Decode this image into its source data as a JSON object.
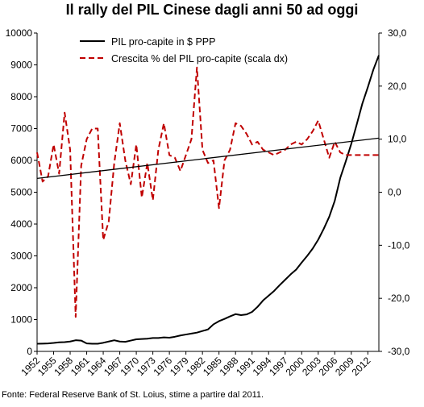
{
  "title": "Il rally del PIL Cinese dagli anni 50 ad oggi",
  "source": "Fonte: Federal Reserve Bank of St. Loius, stime a partire dal 2011.",
  "chart_data": {
    "type": "line",
    "title": "Il rally del PIL Cinese dagli anni 50 ad oggi",
    "x_tick_labels": [
      "1952",
      "1955",
      "1958",
      "1961",
      "1964",
      "1967",
      "1970",
      "1973",
      "1976",
      "1979",
      "1982",
      "1985",
      "1988",
      "1991",
      "1994",
      "1997",
      "2000",
      "2003",
      "2006",
      "2009",
      "2012"
    ],
    "xlim": [
      1952,
      2014
    ],
    "y_left": {
      "ylim": [
        0,
        10000
      ],
      "tick_labels": [
        "0",
        "1000",
        "2000",
        "3000",
        "4000",
        "5000",
        "6000",
        "7000",
        "8000",
        "9000",
        "10000"
      ]
    },
    "y_right": {
      "ylim": [
        -30,
        30
      ],
      "tick_labels": [
        "-30,0",
        "-20,0",
        "-10,0",
        "0,0",
        "10,0",
        "20,0",
        "30,0"
      ]
    },
    "legend_position": "top-center",
    "grid": false,
    "series": [
      {
        "name": "PIL pro-capite in $ PPP",
        "axis": "left",
        "color": "#000000",
        "style": "solid",
        "x": [
          1952,
          1953,
          1954,
          1955,
          1956,
          1957,
          1958,
          1959,
          1960,
          1961,
          1962,
          1963,
          1964,
          1965,
          1966,
          1967,
          1968,
          1969,
          1970,
          1971,
          1972,
          1973,
          1974,
          1975,
          1976,
          1977,
          1978,
          1979,
          1980,
          1981,
          1982,
          1983,
          1984,
          1985,
          1986,
          1987,
          1988,
          1989,
          1990,
          1991,
          1992,
          1993,
          1994,
          1995,
          1996,
          1997,
          1998,
          1999,
          2000,
          2001,
          2002,
          2003,
          2004,
          2005,
          2006,
          2007,
          2008,
          2009,
          2010,
          2011,
          2012,
          2013,
          2014
        ],
        "values": [
          240,
          245,
          250,
          265,
          285,
          290,
          310,
          350,
          340,
          250,
          240,
          240,
          270,
          310,
          350,
          310,
          300,
          340,
          380,
          390,
          400,
          420,
          420,
          440,
          430,
          460,
          500,
          530,
          560,
          590,
          640,
          690,
          850,
          950,
          1020,
          1100,
          1170,
          1140,
          1160,
          1240,
          1400,
          1600,
          1750,
          1900,
          2080,
          2250,
          2420,
          2570,
          2790,
          3000,
          3230,
          3510,
          3850,
          4230,
          4730,
          5450,
          5970,
          6520,
          7140,
          7780,
          8300,
          8850,
          9300
        ]
      },
      {
        "name": "Crescita % del PIL pro-capite (scala dx)",
        "axis": "right",
        "color": "#c00000",
        "style": "dashed",
        "x": [
          1952,
          1953,
          1954,
          1955,
          1956,
          1957,
          1958,
          1959,
          1960,
          1961,
          1962,
          1963,
          1964,
          1965,
          1966,
          1967,
          1968,
          1969,
          1970,
          1971,
          1972,
          1973,
          1974,
          1975,
          1976,
          1977,
          1978,
          1979,
          1980,
          1981,
          1982,
          1983,
          1984,
          1985,
          1986,
          1987,
          1988,
          1989,
          1990,
          1991,
          1992,
          1993,
          1994,
          1995,
          1996,
          1997,
          1998,
          1999,
          2000,
          2001,
          2002,
          2003,
          2004,
          2005,
          2006,
          2007,
          2008,
          2009,
          2010,
          2011,
          2012,
          2013,
          2014
        ],
        "values": [
          7.5,
          2.0,
          3.0,
          9.0,
          3.5,
          15.0,
          8.0,
          -23.5,
          5.0,
          10.0,
          12.0,
          12.0,
          -9.0,
          -5.5,
          5.5,
          13.0,
          6.0,
          1.5,
          9.0,
          -1.0,
          5.5,
          -1.5,
          8.0,
          13.0,
          7.0,
          6.5,
          4.0,
          7.0,
          10.0,
          23.5,
          8.0,
          5.5,
          6.0,
          -3.0,
          6.0,
          8.0,
          13.0,
          12.5,
          11.0,
          9.0,
          9.5,
          8.0,
          7.5,
          7.0,
          7.5,
          8.0,
          9.0,
          9.5,
          9.0,
          10.0,
          11.5,
          13.5,
          10.0,
          6.5,
          9.5,
          7.5,
          7.0,
          7.0,
          7.0,
          7.0,
          7.0,
          7.0,
          7.0
        ]
      },
      {
        "name": "",
        "axis": "right",
        "color": "#000000",
        "style": "solid",
        "kind": "trend",
        "x": [
          1952,
          2014
        ],
        "values": [
          2.6,
          10.2
        ]
      }
    ]
  }
}
